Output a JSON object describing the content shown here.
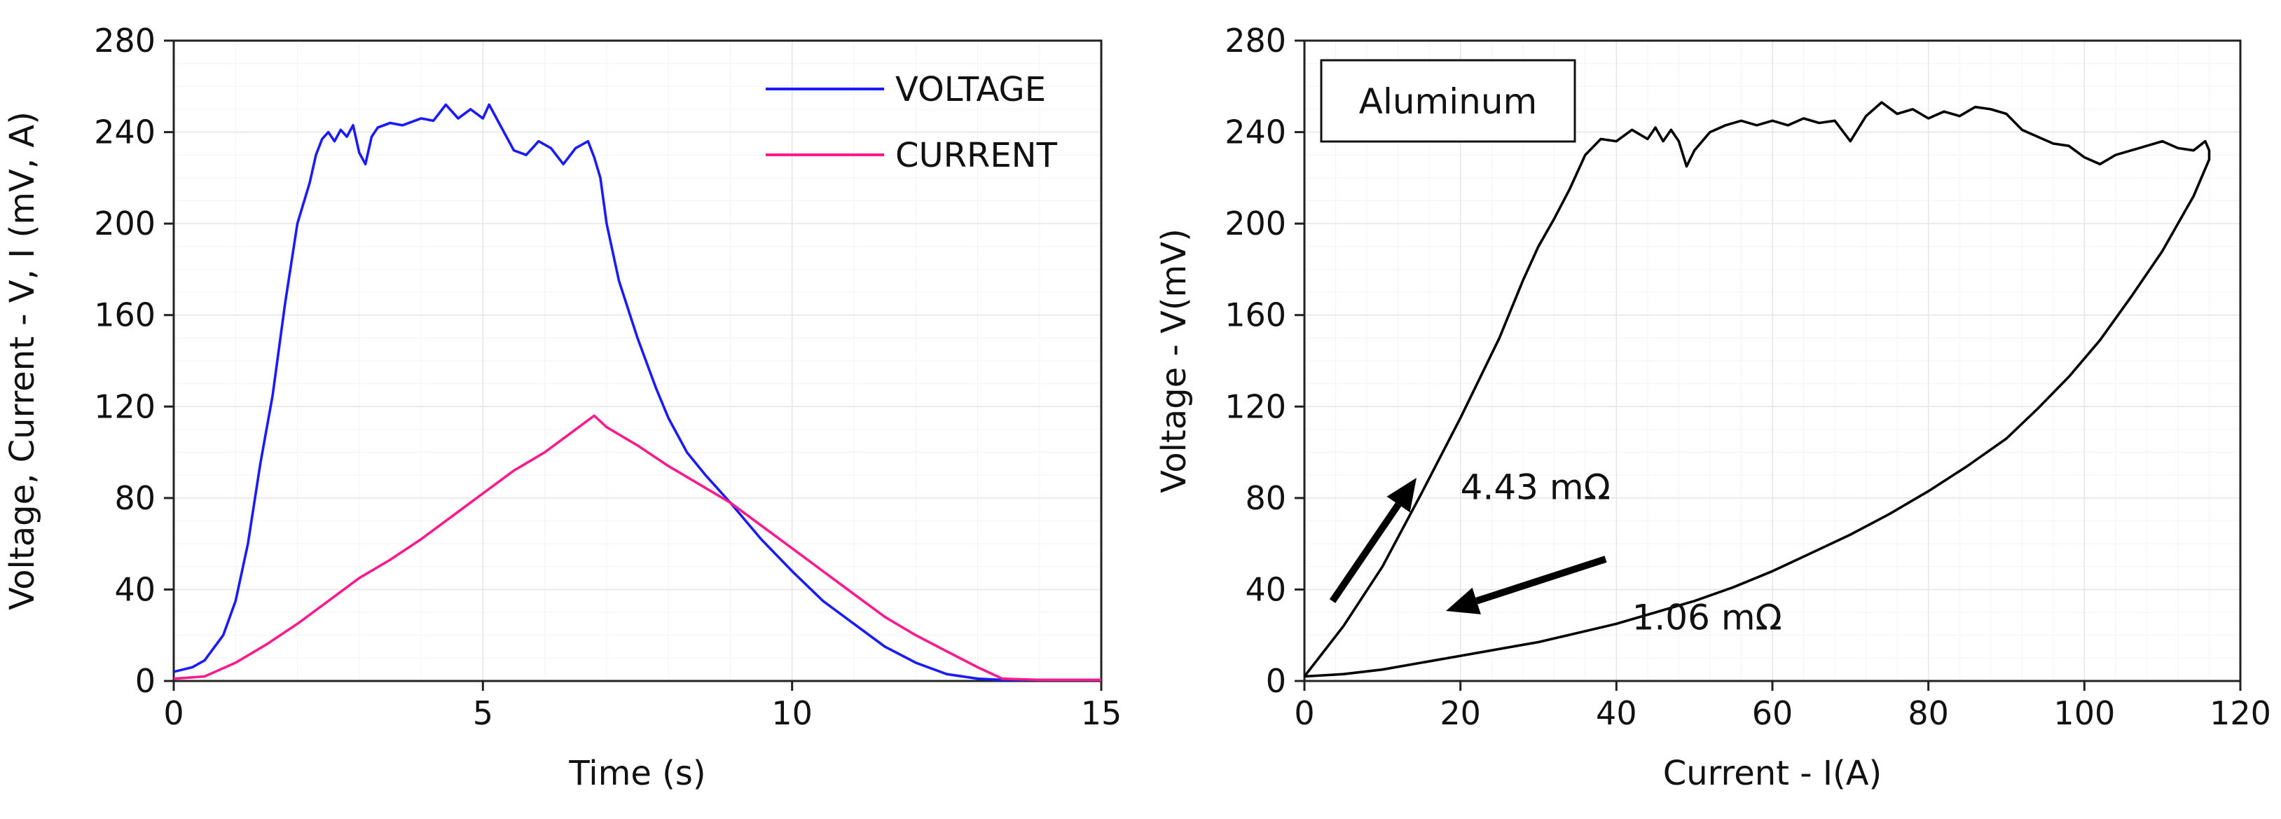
{
  "chart_data": [
    {
      "type": "line",
      "title": "",
      "xlabel": "Time (s)",
      "ylabel": "Voltage, Current - V, I (mV, A)",
      "xlim": [
        0,
        15
      ],
      "ylim": [
        0,
        280
      ],
      "xticks": [
        "0",
        "5",
        "10",
        "15"
      ],
      "yticks": [
        "0",
        "40",
        "80",
        "120",
        "160",
        "200",
        "240",
        "280"
      ],
      "legend_position": "top-right",
      "grid": true,
      "series": [
        {
          "name": "VOLTAGE",
          "color": "#1a1aff",
          "x": [
            0,
            0.3,
            0.5,
            0.8,
            1.0,
            1.2,
            1.4,
            1.6,
            1.8,
            2.0,
            2.2,
            2.3,
            2.4,
            2.5,
            2.6,
            2.7,
            2.8,
            2.9,
            3.0,
            3.1,
            3.2,
            3.3,
            3.5,
            3.7,
            4.0,
            4.2,
            4.4,
            4.6,
            4.8,
            5.0,
            5.1,
            5.3,
            5.5,
            5.7,
            5.9,
            6.1,
            6.3,
            6.5,
            6.7,
            6.8,
            6.9,
            7.0,
            7.2,
            7.5,
            7.8,
            8.0,
            8.3,
            8.6,
            9.0,
            9.5,
            10.0,
            10.5,
            11.0,
            11.5,
            12.0,
            12.5,
            13.0,
            13.4,
            13.6,
            14.0,
            15.0
          ],
          "values": [
            4,
            6,
            9,
            20,
            35,
            60,
            95,
            125,
            165,
            200,
            218,
            230,
            237,
            240,
            236,
            241,
            238,
            243,
            231,
            226,
            238,
            242,
            244,
            243,
            246,
            245,
            252,
            246,
            250,
            246,
            252,
            242,
            232,
            230,
            236,
            233,
            226,
            233,
            236,
            229,
            220,
            200,
            175,
            150,
            128,
            115,
            100,
            90,
            78,
            62,
            48,
            35,
            25,
            15,
            8,
            3,
            1,
            0.5,
            0.5,
            0.5,
            0.5
          ]
        },
        {
          "name": "CURRENT",
          "color": "#ff1a8c",
          "x": [
            0,
            0.5,
            1.0,
            1.5,
            2.0,
            2.5,
            3.0,
            3.5,
            4.0,
            4.5,
            5.0,
            5.5,
            6.0,
            6.5,
            6.8,
            7.0,
            7.5,
            8.0,
            8.5,
            9.0,
            9.5,
            10.0,
            10.5,
            11.0,
            11.5,
            12.0,
            12.5,
            13.0,
            13.4,
            14.0,
            15.0
          ],
          "values": [
            1,
            2,
            8,
            16,
            25,
            35,
            45,
            53,
            62,
            72,
            82,
            92,
            100,
            110,
            116,
            111,
            103,
            94,
            86,
            78,
            68,
            58,
            48,
            38,
            28,
            20,
            13,
            6,
            1,
            0.5,
            0.5
          ]
        }
      ]
    },
    {
      "type": "line",
      "title": "",
      "xlabel": "Current - I(A)",
      "ylabel": "Voltage - V(mV)",
      "xlim": [
        0,
        120
      ],
      "ylim": [
        0,
        280
      ],
      "xticks": [
        "0",
        "20",
        "40",
        "60",
        "80",
        "100",
        "120"
      ],
      "yticks": [
        "0",
        "40",
        "80",
        "120",
        "160",
        "200",
        "240",
        "280"
      ],
      "grid": true,
      "label_box": "Aluminum",
      "annotations": [
        {
          "text": "4.43 mΩ",
          "x": 20,
          "y": 85
        },
        {
          "text": "1.06 mΩ",
          "x": 42,
          "y": 28
        }
      ],
      "series": [
        {
          "name": "Aluminum",
          "color": "#000000",
          "x": [
            0,
            5,
            10,
            15,
            20,
            25,
            28,
            30,
            32,
            34,
            36,
            38,
            40,
            42,
            44,
            45,
            46,
            47,
            48,
            49,
            50,
            52,
            54,
            56,
            58,
            60,
            62,
            64,
            66,
            68,
            70,
            72,
            74,
            76,
            78,
            80,
            82,
            84,
            86,
            88,
            90,
            92,
            94,
            96,
            98,
            100,
            102,
            104,
            106,
            108,
            110,
            112,
            114,
            115.5,
            116,
            116,
            115,
            114,
            112,
            110,
            106,
            102,
            98,
            94,
            90,
            85,
            80,
            75,
            70,
            65,
            60,
            55,
            50,
            45,
            40,
            35,
            30,
            25,
            20,
            15,
            10,
            5,
            0
          ],
          "values": [
            2,
            24,
            50,
            82,
            115,
            150,
            175,
            190,
            202,
            215,
            230,
            237,
            236,
            241,
            237,
            242,
            236,
            241,
            236,
            225,
            232,
            240,
            243,
            245,
            243,
            245,
            243,
            246,
            244,
            245,
            236,
            247,
            253,
            248,
            250,
            246,
            249,
            247,
            251,
            250,
            248,
            241,
            238,
            235,
            234,
            229,
            226,
            230,
            232,
            234,
            236,
            233,
            232,
            236,
            232,
            228,
            220,
            212,
            200,
            188,
            168,
            149,
            133,
            119,
            106,
            94,
            83,
            73,
            64,
            56,
            48,
            41,
            35,
            30,
            25,
            21,
            17,
            14,
            11,
            8,
            5,
            3,
            2
          ]
        }
      ]
    }
  ]
}
